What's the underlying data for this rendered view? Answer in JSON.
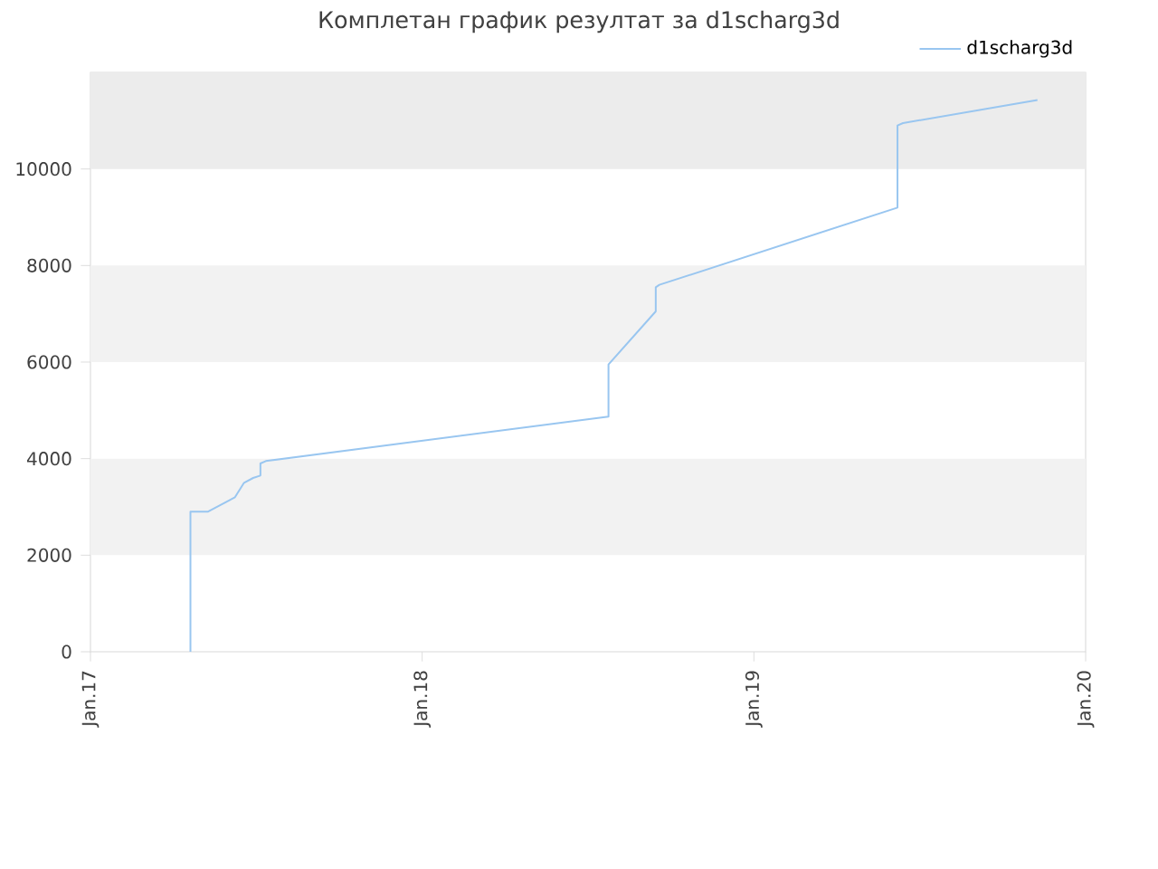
{
  "chart_data": {
    "type": "line",
    "title": "Комплетан график резултат за d1scharg3d",
    "x": [
      "2017-04-21",
      "2017-04-21",
      "2017-05-10",
      "2017-06-09",
      "2017-06-19",
      "2017-06-29",
      "2017-07-07",
      "2017-07-07",
      "2017-07-13",
      "2018-07-25",
      "2018-07-25",
      "2018-09-15",
      "2018-09-15",
      "2018-09-19",
      "2019-06-08",
      "2019-06-08",
      "2019-06-14",
      "2019-11-09"
    ],
    "series": [
      {
        "name": "d1scharg3d",
        "color": "#99c6f0",
        "values": [
          0,
          2900,
          2900,
          3200,
          3500,
          3600,
          3650,
          3900,
          3950,
          4870,
          5950,
          7050,
          7550,
          7600,
          9200,
          10900,
          10950,
          11430
        ]
      }
    ],
    "xlim": [
      "2017-01-01",
      "2020-01-01"
    ],
    "xticks": [
      {
        "value": "2017-01-01",
        "label": "Jan.17"
      },
      {
        "value": "2018-01-01",
        "label": "Jan.18"
      },
      {
        "value": "2019-01-01",
        "label": "Jan.19"
      },
      {
        "value": "2020-01-01",
        "label": "Jan.20"
      }
    ],
    "ylim": [
      0,
      12000
    ],
    "yticks": [
      0,
      2000,
      4000,
      6000,
      8000,
      10000
    ],
    "bands": [
      {
        "axis": "y",
        "from": 2000,
        "to": 4000,
        "color": "#f2f2f2"
      },
      {
        "axis": "y",
        "from": 6000,
        "to": 8000,
        "color": "#f2f2f2"
      },
      {
        "axis": "y",
        "from": 10000,
        "to": 12000,
        "color": "#ececec"
      }
    ],
    "legend": "top right",
    "marker": "none",
    "line_style": "solid"
  }
}
